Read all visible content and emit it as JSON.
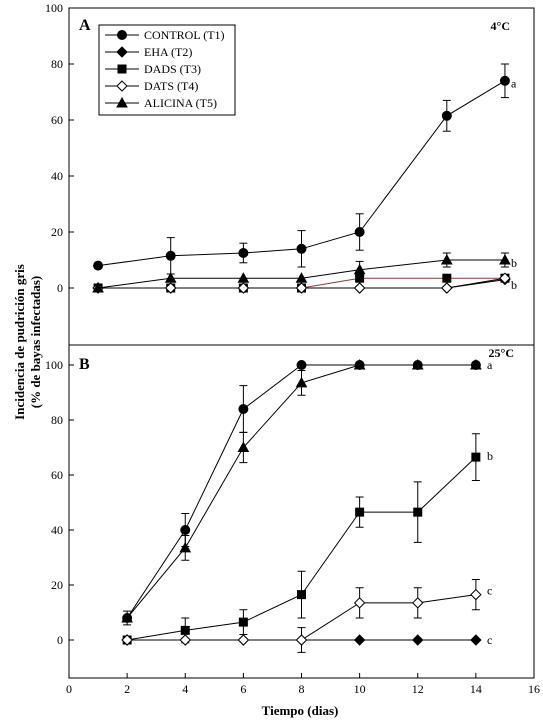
{
  "chart_data": {
    "type": "line",
    "shared": {
      "xlabel": "Tiempo (dias)",
      "ylabel_line1": "Incidencia de pudrición gris",
      "ylabel_line2": "(% de bayas infectadas)",
      "xlim": [
        0,
        16
      ],
      "xticks": [
        "0",
        "2",
        "4",
        "6",
        "8",
        "10",
        "12",
        "14",
        "16"
      ]
    },
    "panels": [
      {
        "id": "A",
        "label": "A",
        "temperature": "4°C",
        "ylim": [
          -10,
          100
        ],
        "yticks": [
          "0",
          "20",
          "40",
          "60",
          "80",
          "100"
        ],
        "legend": {
          "items": [
            "CONTROL (T1)",
            "EHA (T2)",
            "DADS (T3)",
            "DATS (T4)",
            "ALICINA (T5)"
          ]
        },
        "series": [
          {
            "name": "CONTROL (T1)",
            "marker": "circle",
            "fill": "black",
            "x": [
              1,
              3.5,
              6,
              8,
              10,
              13,
              15
            ],
            "y": [
              8,
              11.5,
              12.5,
              14,
              20,
              61.5,
              74
            ],
            "err": [
              0,
              6.5,
              3.5,
              6.5,
              6.5,
              5.5,
              6
            ]
          },
          {
            "name": "EHA (T2)",
            "marker": "diamond",
            "fill": "black",
            "x": [
              1,
              3.5,
              6,
              8,
              10,
              13,
              15
            ],
            "y": [
              0,
              0,
              0,
              0,
              0,
              0,
              3
            ],
            "err": [
              0,
              0,
              0,
              0,
              0,
              0,
              0
            ]
          },
          {
            "name": "DADS (T3)",
            "marker": "square",
            "fill": "black",
            "x": [
              1,
              3.5,
              6,
              8,
              10,
              13,
              15
            ],
            "y": [
              0,
              0,
              0,
              0,
              3.5,
              3.5,
              3.5
            ],
            "err": [
              0,
              0,
              0,
              0,
              0,
              0,
              0
            ]
          },
          {
            "name": "DATS (T4)",
            "marker": "diamond",
            "fill": "white",
            "x": [
              1,
              3.5,
              6,
              8,
              10,
              13,
              15
            ],
            "y": [
              0,
              0,
              0,
              0,
              0,
              0,
              3.5
            ],
            "err": [
              0,
              0,
              0,
              0,
              0,
              0,
              0
            ]
          },
          {
            "name": "ALICINA (T5)",
            "marker": "triangle",
            "fill": "black",
            "x": [
              1,
              3.5,
              6,
              8,
              10,
              13,
              15
            ],
            "y": [
              0,
              3.5,
              3.5,
              3.5,
              6.5,
              10,
              10
            ],
            "err": [
              0,
              0,
              0,
              0,
              3,
              2.5,
              2.5
            ]
          }
        ],
        "letters": [
          {
            "text": "a",
            "y": 73
          },
          {
            "text": "b",
            "y": 9
          },
          {
            "text": "b",
            "y": 1
          }
        ]
      },
      {
        "id": "B",
        "label": "B",
        "temperature": "25°C",
        "ylim": [
          -10,
          100
        ],
        "yticks": [
          "0",
          "20",
          "40",
          "60",
          "80",
          "100"
        ],
        "series": [
          {
            "name": "CONTROL (T1)",
            "marker": "circle",
            "fill": "black",
            "x": [
              2,
              4,
              6,
              8,
              10,
              12,
              14
            ],
            "y": [
              8,
              40,
              84,
              100,
              100,
              100,
              100
            ],
            "err": [
              2.5,
              6,
              8.5,
              0,
              0,
              0,
              0
            ]
          },
          {
            "name": "EHA (T2)",
            "marker": "diamond",
            "fill": "black",
            "x": [
              2,
              4,
              6,
              8,
              10,
              12,
              14
            ],
            "y": [
              0,
              0,
              0,
              0,
              0,
              0,
              0
            ],
            "err": [
              0,
              0,
              0,
              0,
              0,
              0,
              0
            ]
          },
          {
            "name": "DADS (T3)",
            "marker": "square",
            "fill": "black",
            "x": [
              2,
              4,
              6,
              8,
              10,
              12,
              14
            ],
            "y": [
              0,
              3.5,
              6.5,
              16.5,
              46.5,
              46.5,
              66.5
            ],
            "err": [
              0,
              4.5,
              4.5,
              8.5,
              5.5,
              11,
              8.5
            ]
          },
          {
            "name": "DATS (T4)",
            "marker": "diamond",
            "fill": "white",
            "x": [
              2,
              4,
              6,
              8,
              10,
              12,
              14
            ],
            "y": [
              0,
              0,
              0,
              0,
              13.5,
              13.5,
              16.5
            ],
            "err": [
              0,
              0,
              0,
              4.5,
              5.5,
              5.5,
              5.5
            ]
          },
          {
            "name": "ALICINA (T5)",
            "marker": "triangle",
            "fill": "black",
            "x": [
              2,
              4,
              6,
              8,
              10,
              12,
              14
            ],
            "y": [
              8,
              33.5,
              70,
              93.5,
              100,
              100,
              100
            ],
            "err": [
              0,
              4.5,
              5.5,
              4.5,
              0,
              0,
              0
            ]
          }
        ],
        "letters": [
          {
            "text": "a",
            "y": 100
          },
          {
            "text": "b",
            "y": 67
          },
          {
            "text": "c",
            "y": 18
          },
          {
            "text": "c",
            "y": 0
          }
        ]
      }
    ]
  }
}
